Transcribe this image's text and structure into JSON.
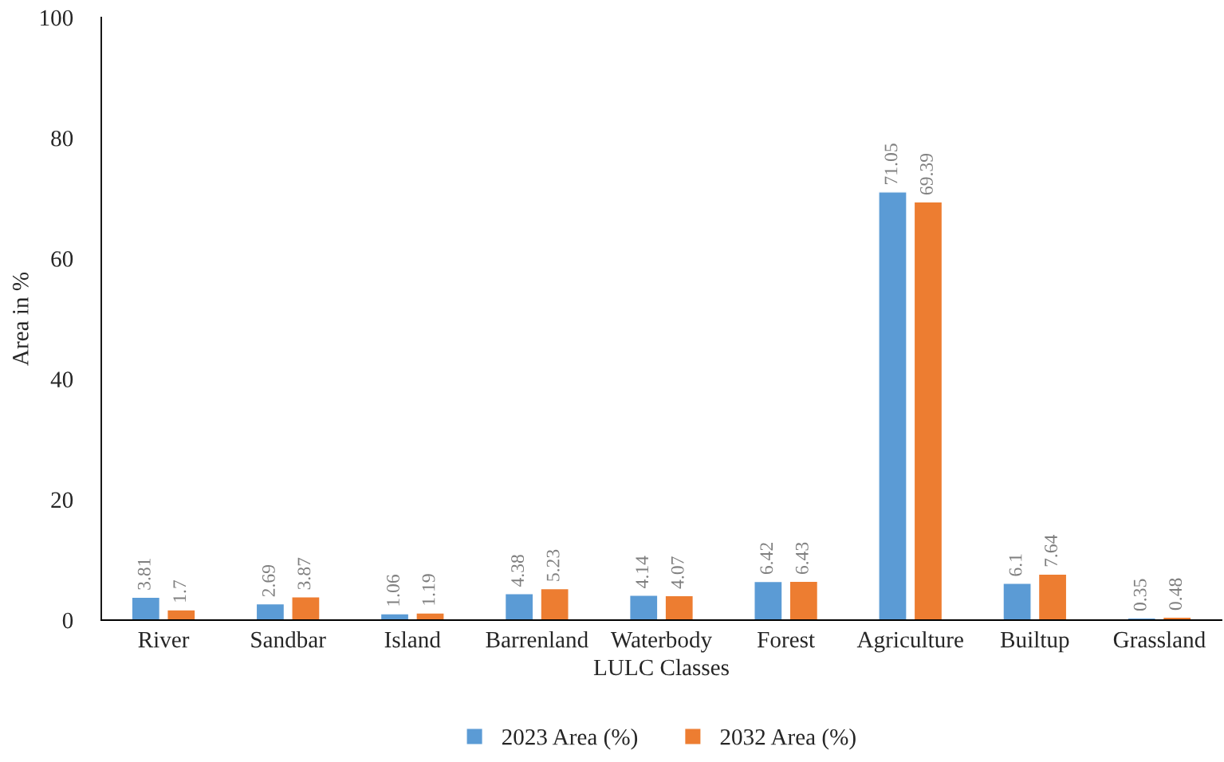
{
  "chart_data": {
    "type": "bar",
    "xlabel": "LULC Classes",
    "ylabel": "Area in %",
    "categories": [
      "River",
      "Sandbar",
      "Island",
      "Barrenland",
      "Waterbody",
      "Forest",
      "Agriculture",
      "Builtup",
      "Grassland"
    ],
    "series": [
      {
        "name": "2023 Area (%)",
        "color": "#5b9bd5",
        "values": [
          3.81,
          2.69,
          1.06,
          4.38,
          4.14,
          6.42,
          71.05,
          6.1,
          0.35
        ]
      },
      {
        "name": "2032 Area (%)",
        "color": "#ed7d31",
        "values": [
          1.7,
          3.87,
          1.19,
          5.23,
          4.07,
          6.43,
          69.39,
          7.64,
          0.48
        ]
      }
    ],
    "ylim": [
      0,
      100
    ],
    "yticks": [
      0,
      20,
      40,
      60,
      80,
      100
    ],
    "grid": false,
    "legend": "bottom",
    "data_labels": true
  }
}
